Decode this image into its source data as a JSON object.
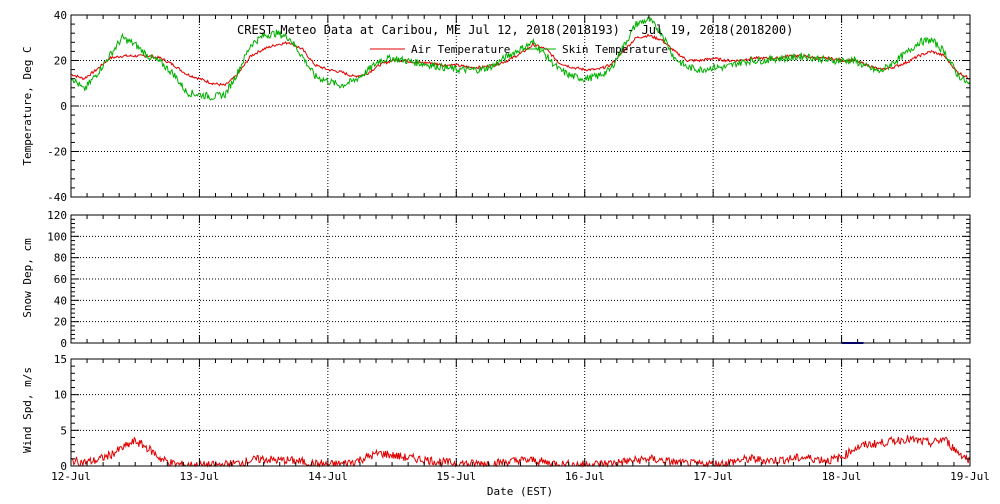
{
  "chart_data": {
    "type": "line",
    "title": "CREST Meteo Data at Caribou, ME   Jul 12, 2018(2018193) - Jul 19, 2018(2018200)",
    "xlabel": "Date (EST)",
    "x_ticks": [
      "12-Jul",
      "13-Jul",
      "14-Jul",
      "15-Jul",
      "16-Jul",
      "17-Jul",
      "18-Jul",
      "19-Jul"
    ],
    "xlim": [
      0,
      7
    ],
    "grid": true,
    "legend_position": "top-right",
    "panels": [
      {
        "ylabel": "Temperature, Deg C",
        "ylim": [
          -40,
          40
        ],
        "y_ticks": [
          40,
          20,
          0,
          -20,
          -40
        ],
        "legend": [
          "Air Temperature",
          "Skin Temperature"
        ],
        "series": [
          {
            "name": "Air Temperature",
            "color": "#e00000",
            "x": [
              0,
              0.1,
              0.2,
              0.3,
              0.4,
              0.5,
              0.6,
              0.7,
              0.8,
              0.9,
              1.0,
              1.1,
              1.2,
              1.3,
              1.4,
              1.5,
              1.6,
              1.7,
              1.8,
              1.9,
              2.0,
              2.1,
              2.2,
              2.3,
              2.4,
              2.5,
              2.6,
              2.7,
              2.8,
              2.9,
              3.0,
              3.1,
              3.2,
              3.3,
              3.4,
              3.5,
              3.6,
              3.7,
              3.8,
              3.9,
              4.0,
              4.1,
              4.2,
              4.3,
              4.4,
              4.5,
              4.6,
              4.7,
              4.8,
              4.9,
              5.0,
              5.1,
              5.2,
              5.3,
              5.4,
              5.5,
              5.6,
              5.7,
              5.8,
              5.9,
              6.0,
              6.1,
              6.2,
              6.3,
              6.4,
              6.5,
              6.6,
              6.7,
              6.8,
              6.9,
              7.0
            ],
            "y": [
              14,
              12,
              16,
              21,
              22,
              22,
              22,
              21,
              18,
              14,
              12,
              10,
              9,
              14,
              22,
              25,
              27,
              28,
              25,
              18,
              16,
              15,
              13,
              14,
              18,
              20,
              20,
              19,
              19,
              18,
              18,
              17,
              17,
              18,
              20,
              23,
              27,
              25,
              19,
              17,
              16,
              16,
              18,
              24,
              30,
              31,
              29,
              24,
              20,
              20,
              21,
              20,
              20,
              21,
              21,
              21,
              22,
              22,
              21,
              21,
              20,
              20,
              18,
              16,
              17,
              19,
              22,
              24,
              22,
              15,
              12
            ],
            "jitter": 0.6
          },
          {
            "name": "Skin Temperature",
            "color": "#00b000",
            "x": [
              0,
              0.1,
              0.2,
              0.3,
              0.4,
              0.5,
              0.6,
              0.7,
              0.8,
              0.9,
              1.0,
              1.1,
              1.2,
              1.3,
              1.4,
              1.5,
              1.6,
              1.7,
              1.8,
              1.9,
              2.0,
              2.1,
              2.2,
              2.3,
              2.4,
              2.5,
              2.6,
              2.7,
              2.8,
              2.9,
              3.0,
              3.1,
              3.2,
              3.3,
              3.4,
              3.5,
              3.6,
              3.7,
              3.8,
              3.9,
              4.0,
              4.1,
              4.2,
              4.3,
              4.4,
              4.5,
              4.6,
              4.7,
              4.8,
              4.9,
              5.0,
              5.1,
              5.2,
              5.3,
              5.4,
              5.5,
              5.6,
              5.7,
              5.8,
              5.9,
              6.0,
              6.1,
              6.2,
              6.3,
              6.4,
              6.5,
              6.6,
              6.7,
              6.8,
              6.9,
              7.0
            ],
            "y": [
              13,
              7,
              14,
              22,
              30,
              27,
              22,
              19,
              14,
              6,
              5,
              4,
              5,
              15,
              27,
              31,
              32,
              30,
              22,
              13,
              11,
              9,
              11,
              15,
              20,
              21,
              20,
              19,
              18,
              17,
              16,
              16,
              16,
              18,
              22,
              25,
              28,
              22,
              16,
              13,
              12,
              13,
              16,
              26,
              36,
              38,
              32,
              21,
              17,
              16,
              17,
              17,
              19,
              20,
              20,
              21,
              21,
              22,
              21,
              20,
              20,
              20,
              17,
              15,
              19,
              23,
              28,
              29,
              24,
              14,
              9
            ],
            "jitter": 1.6
          }
        ]
      },
      {
        "ylabel": "Snow Dep, cm",
        "ylim": [
          0,
          120
        ],
        "y_ticks": [
          120,
          100,
          80,
          60,
          40,
          20,
          0
        ],
        "series": [
          {
            "color": "#0000cc",
            "x": [
              6.0,
              6.17
            ],
            "y": [
              0,
              0
            ]
          }
        ]
      },
      {
        "ylabel": "Wind Spd, m/s",
        "ylim": [
          0,
          15
        ],
        "y_ticks": [
          15,
          10,
          5,
          0
        ],
        "series": [
          {
            "color": "#e00000",
            "x": [
              0,
              0.1,
              0.2,
              0.3,
              0.4,
              0.5,
              0.6,
              0.7,
              0.8,
              0.9,
              1.0,
              1.1,
              1.2,
              1.3,
              1.4,
              1.5,
              1.6,
              1.7,
              1.8,
              1.9,
              2.0,
              2.1,
              2.2,
              2.3,
              2.4,
              2.5,
              2.6,
              2.7,
              2.8,
              2.9,
              3.0,
              3.1,
              3.2,
              3.3,
              3.4,
              3.5,
              3.6,
              3.7,
              3.8,
              3.9,
              4.0,
              4.1,
              4.2,
              4.3,
              4.4,
              4.5,
              4.6,
              4.7,
              4.8,
              4.9,
              5.0,
              5.1,
              5.2,
              5.3,
              5.4,
              5.5,
              5.6,
              5.7,
              5.8,
              5.9,
              6.0,
              6.1,
              6.2,
              6.3,
              6.4,
              6.5,
              6.6,
              6.7,
              6.8,
              6.9,
              7.0
            ],
            "y": [
              0.8,
              0.5,
              0.8,
              1.5,
              2.5,
              3.5,
              2.5,
              1.0,
              0.3,
              0.1,
              0.1,
              0.1,
              0.2,
              0.4,
              0.8,
              1.0,
              0.8,
              0.8,
              0.6,
              0.3,
              0.2,
              0.3,
              0.6,
              1.2,
              1.8,
              1.5,
              1.2,
              1.0,
              0.8,
              0.5,
              0.4,
              0.3,
              0.4,
              0.4,
              0.6,
              0.8,
              0.8,
              0.5,
              0.3,
              0.2,
              0.2,
              0.3,
              0.4,
              0.6,
              0.8,
              1.0,
              0.8,
              0.5,
              0.3,
              0.3,
              0.3,
              0.4,
              0.8,
              1.0,
              0.8,
              0.8,
              1.0,
              1.2,
              1.0,
              0.8,
              1.2,
              2.5,
              3.0,
              3.2,
              3.5,
              3.8,
              3.5,
              3.2,
              3.8,
              2.0,
              0.8
            ],
            "jitter": 0.6
          }
        ]
      }
    ]
  }
}
